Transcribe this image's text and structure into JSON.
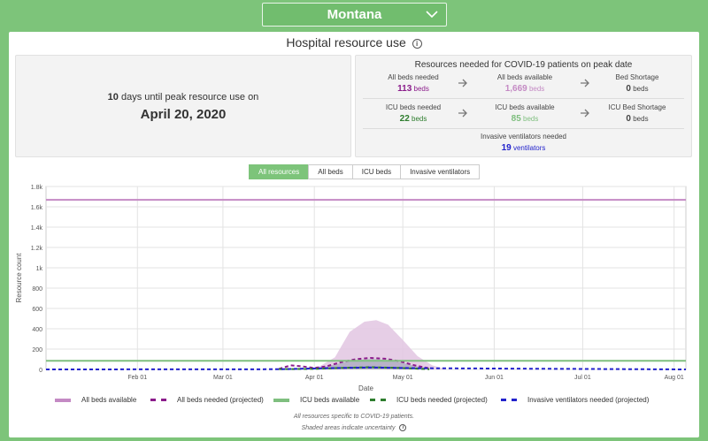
{
  "state_selector": {
    "value": "Montana"
  },
  "panel": {
    "title": "Hospital resource use",
    "peak": {
      "days": "10",
      "days_suffix": "days until peak resource use on",
      "date": "April 20, 2020"
    },
    "resources": {
      "title": "Resources needed for COVID-19 patients on peak date",
      "row1": [
        {
          "label": "All beds needed",
          "value": "113",
          "unit": "beds",
          "color": "#8b1c8b"
        },
        {
          "label": "All beds available",
          "value": "1,669",
          "unit": "beds",
          "color": "#c48ac4"
        },
        {
          "label": "Bed Shortage",
          "value": "0",
          "unit": "beds",
          "color": "#444444"
        }
      ],
      "row2": [
        {
          "label": "ICU beds needed",
          "value": "22",
          "unit": "beds",
          "color": "#2e7d2e"
        },
        {
          "label": "ICU beds available",
          "value": "85",
          "unit": "beds",
          "color": "#7fbf7f"
        },
        {
          "label": "ICU Bed Shortage",
          "value": "0",
          "unit": "beds",
          "color": "#444444"
        }
      ],
      "vent": {
        "label": "Invasive ventilators needed",
        "value": "19",
        "unit": "ventilators",
        "color": "#2222cc"
      }
    }
  },
  "tabs": [
    {
      "label": "All resources",
      "active": true
    },
    {
      "label": "All beds",
      "active": false
    },
    {
      "label": "ICU beds",
      "active": false
    },
    {
      "label": "Invasive ventilators",
      "active": false
    }
  ],
  "chart_data": {
    "type": "line",
    "xlabel": "Date",
    "ylabel": "Resource count",
    "x_ticks": [
      "Feb 01",
      "Mar 01",
      "Apr 01",
      "May 01",
      "Jun 01",
      "Jul 01",
      "Aug 01"
    ],
    "y_ticks": [
      "0",
      "200",
      "400",
      "600",
      "800",
      "1k",
      "1.2k",
      "1.4k",
      "1.6k",
      "1.8k"
    ],
    "ylim": [
      0,
      1800
    ],
    "xlim": [
      "2020-01-01",
      "2020-08-05"
    ],
    "grid": true,
    "series": [
      {
        "name": "All beds available",
        "style": "solid",
        "color": "#c48ac4",
        "x": [
          "2020-01-01",
          "2020-08-05"
        ],
        "values": [
          1669,
          1669
        ]
      },
      {
        "name": "All beds needed (projected)",
        "style": "dashed",
        "color": "#8b1c8b",
        "x": [
          "2020-03-20",
          "2020-03-24",
          "2020-03-28",
          "2020-04-01",
          "2020-04-05",
          "2020-04-10",
          "2020-04-15",
          "2020-04-20",
          "2020-04-25",
          "2020-04-30",
          "2020-05-05",
          "2020-05-10"
        ],
        "values": [
          5,
          40,
          30,
          15,
          30,
          70,
          100,
          113,
          105,
          80,
          40,
          10
        ]
      },
      {
        "name": "ICU beds available",
        "style": "solid",
        "color": "#7fbf7f",
        "x": [
          "2020-01-01",
          "2020-08-05"
        ],
        "values": [
          85,
          85
        ]
      },
      {
        "name": "ICU beds needed (projected)",
        "style": "dashed",
        "color": "#2e7d2e",
        "x": [
          "2020-03-20",
          "2020-04-01",
          "2020-04-10",
          "2020-04-20",
          "2020-04-30",
          "2020-05-10"
        ],
        "values": [
          3,
          5,
          15,
          22,
          15,
          3
        ]
      },
      {
        "name": "Invasive ventilators needed (projected)",
        "style": "dashed",
        "color": "#2222cc",
        "x": [
          "2020-01-01",
          "2020-03-20",
          "2020-04-05",
          "2020-04-20",
          "2020-05-05",
          "2020-08-05"
        ],
        "values": [
          0,
          2,
          12,
          19,
          12,
          0
        ]
      }
    ],
    "uncertainty": {
      "all_beds_upper": {
        "x": [
          "2020-04-01",
          "2020-04-08",
          "2020-04-13",
          "2020-04-18",
          "2020-04-22",
          "2020-04-26",
          "2020-05-01",
          "2020-05-06",
          "2020-05-11",
          "2020-05-16"
        ],
        "values": [
          0,
          120,
          370,
          470,
          485,
          440,
          290,
          130,
          40,
          0
        ]
      }
    }
  },
  "footnotes": {
    "line1": "All resources specific to COVID-19 patients.",
    "line2": "Shaded areas indicate uncertainty"
  }
}
